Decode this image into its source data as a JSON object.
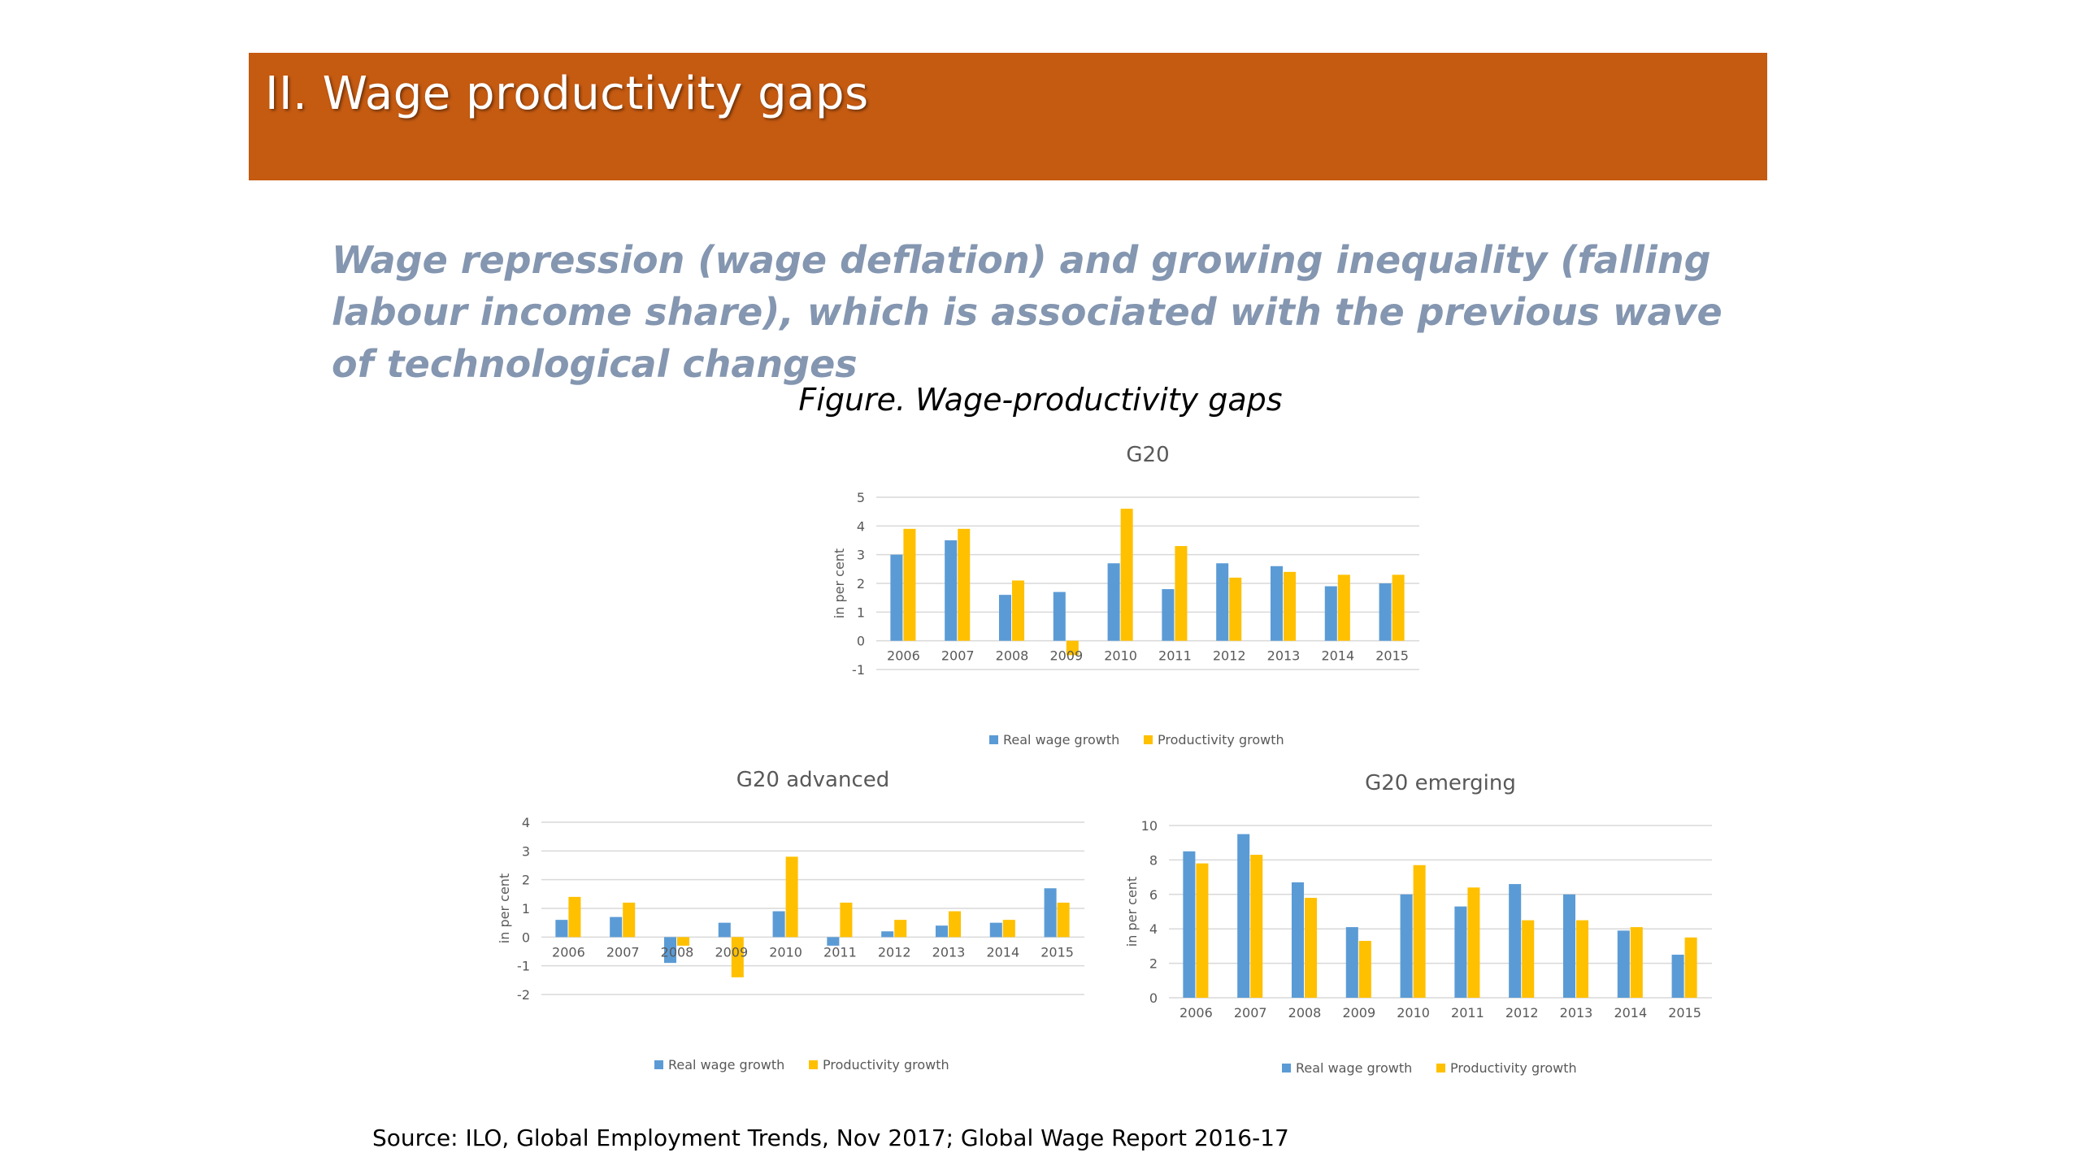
{
  "slide": {
    "title": "II. Wage productivity gaps",
    "subtitle": "Wage repression (wage deflation) and growing inequality (falling labour income share), which is associated with the previous wave of technological changes",
    "figure_caption": "Figure. Wage-productivity gaps",
    "source": "Source: ILO, Global Employment Trends, Nov 2017; Global Wage Report 2016-17"
  },
  "colors": {
    "banner": "#c55a11",
    "subtitle": "#8496b0",
    "series_wage": "#5b9bd5",
    "series_productivity": "#ffc000"
  },
  "chart_data": [
    {
      "type": "bar",
      "title": "G20",
      "ylabel": "in per cent",
      "categories": [
        "2006",
        "2007",
        "2008",
        "2009",
        "2010",
        "2011",
        "2012",
        "2013",
        "2014",
        "2015"
      ],
      "series": [
        {
          "name": "Real wage growth",
          "values": [
            3.0,
            3.5,
            1.6,
            1.7,
            2.7,
            1.8,
            2.7,
            2.6,
            1.9,
            2.0
          ]
        },
        {
          "name": "Productivity growth",
          "values": [
            3.9,
            3.9,
            2.1,
            -0.5,
            4.6,
            3.3,
            2.2,
            2.4,
            2.3,
            2.3
          ]
        }
      ],
      "ylim": [
        -1,
        5
      ],
      "yticks": [
        -1,
        0,
        1,
        2,
        3,
        4,
        5
      ],
      "grid": true,
      "legend": "bottom"
    },
    {
      "type": "bar",
      "title": "G20 advanced",
      "ylabel": "in per cent",
      "categories": [
        "2006",
        "2007",
        "2008",
        "2009",
        "2010",
        "2011",
        "2012",
        "2013",
        "2014",
        "2015"
      ],
      "series": [
        {
          "name": "Real wage growth",
          "values": [
            0.6,
            0.7,
            -0.9,
            0.5,
            0.9,
            -0.3,
            0.2,
            0.4,
            0.5,
            1.7
          ]
        },
        {
          "name": "Productivity growth",
          "values": [
            1.4,
            1.2,
            -0.3,
            -1.4,
            2.8,
            1.2,
            0.6,
            0.9,
            0.6,
            1.2
          ]
        }
      ],
      "ylim": [
        -2,
        4
      ],
      "yticks": [
        -2,
        -1,
        0,
        1,
        2,
        3,
        4
      ],
      "grid": true,
      "legend": "bottom"
    },
    {
      "type": "bar",
      "title": "G20 emerging",
      "ylabel": "in per cent",
      "categories": [
        "2006",
        "2007",
        "2008",
        "2009",
        "2010",
        "2011",
        "2012",
        "2013",
        "2014",
        "2015"
      ],
      "series": [
        {
          "name": "Real wage growth",
          "values": [
            8.5,
            9.5,
            6.7,
            4.1,
            6.0,
            5.3,
            6.6,
            6.0,
            3.9,
            2.5
          ]
        },
        {
          "name": "Productivity growth",
          "values": [
            7.8,
            8.3,
            5.8,
            3.3,
            7.7,
            6.4,
            4.5,
            4.5,
            4.1,
            3.5
          ]
        }
      ],
      "ylim": [
        0,
        10
      ],
      "yticks": [
        0,
        2,
        4,
        6,
        8,
        10
      ],
      "grid": true,
      "legend": "bottom"
    }
  ]
}
